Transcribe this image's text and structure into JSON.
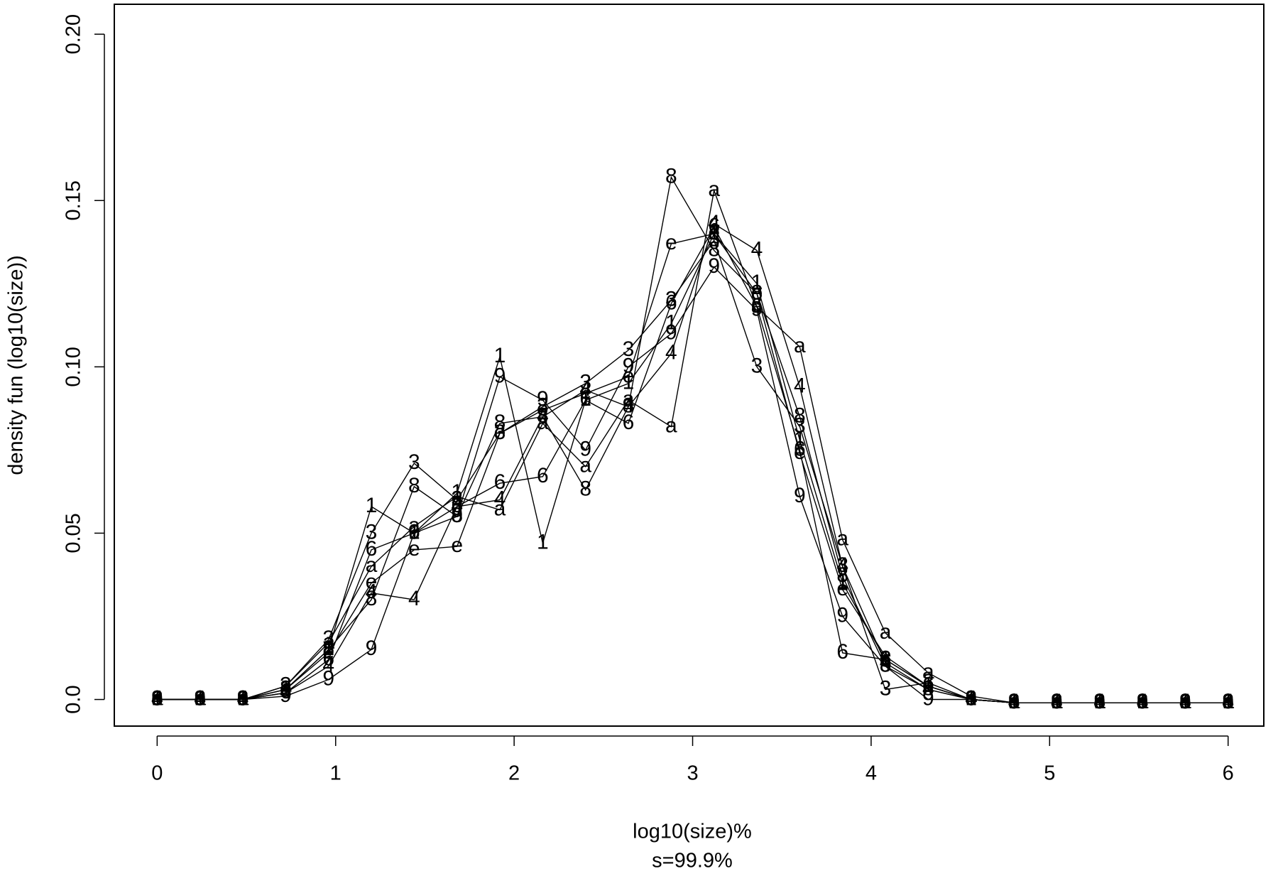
{
  "chart_data": {
    "type": "line",
    "xlabel": "log10(size)%",
    "subtitle": "s=99.9%",
    "ylabel": "density fun (log10(size))",
    "x": [
      0,
      0.24,
      0.48,
      0.72,
      0.96,
      1.2,
      1.44,
      1.68,
      1.92,
      2.16,
      2.4,
      2.64,
      2.88,
      3.12,
      3.36,
      3.6,
      3.84,
      4.08,
      4.32,
      4.56,
      4.8,
      5.04,
      5.28,
      5.52,
      5.76,
      6
    ],
    "series": [
      {
        "name": "1",
        "color": "#000000",
        "values": [
          0,
          0,
          0,
          0.003,
          0.015,
          0.058,
          0.05,
          0.062,
          0.103,
          0.047,
          0.09,
          0.095,
          0.113,
          0.14,
          0.125,
          0.078,
          0.035,
          0.012,
          0.004,
          0,
          -0.001,
          -0.001,
          -0.001,
          -0.001,
          -0.001,
          -0.001
        ]
      },
      {
        "name": "3",
        "color": "#000000",
        "values": [
          0,
          0,
          0,
          0.004,
          0.018,
          0.05,
          0.071,
          0.06,
          0.08,
          0.088,
          0.095,
          0.105,
          0.12,
          0.138,
          0.1,
          0.082,
          0.04,
          0.003,
          0.005,
          0,
          -0.001,
          -0.001,
          -0.001,
          -0.001,
          -0.001,
          -0.001
        ]
      },
      {
        "name": "6",
        "color": "#000000",
        "values": [
          0,
          0,
          0,
          0.002,
          0.012,
          0.045,
          0.05,
          0.058,
          0.065,
          0.067,
          0.09,
          0.083,
          0.119,
          0.142,
          0.118,
          0.075,
          0.014,
          0.012,
          0.004,
          0,
          -0.001,
          -0.001,
          -0.001,
          -0.001,
          -0.001,
          -0.001
        ]
      },
      {
        "name": "8",
        "color": "#000000",
        "values": [
          0,
          0,
          0,
          0.003,
          0.015,
          0.03,
          0.064,
          0.055,
          0.083,
          0.085,
          0.063,
          0.088,
          0.157,
          0.135,
          0.122,
          0.085,
          0.037,
          0.01,
          0.003,
          0,
          -0.001,
          -0.001,
          -0.001,
          -0.001,
          -0.001,
          -0.001
        ]
      },
      {
        "name": "9",
        "color": "#000000",
        "values": [
          0,
          0,
          0,
          0.001,
          0.006,
          0.015,
          0.05,
          0.055,
          0.097,
          0.09,
          0.075,
          0.1,
          0.11,
          0.13,
          0.117,
          0.061,
          0.025,
          0.01,
          0,
          0,
          -0.001,
          -0.001,
          -0.001,
          -0.001,
          -0.001,
          -0.001
        ]
      },
      {
        "name": "a",
        "color": "#000000",
        "values": [
          0,
          0,
          0,
          0.004,
          0.017,
          0.04,
          0.052,
          0.061,
          0.057,
          0.083,
          0.07,
          0.09,
          0.082,
          0.153,
          0.118,
          0.106,
          0.048,
          0.02,
          0.008,
          0.001,
          -0.001,
          -0.001,
          -0.001,
          -0.001,
          -0.001,
          -0.001
        ]
      },
      {
        "name": "e",
        "color": "#000000",
        "values": [
          0,
          0,
          0,
          0.003,
          0.014,
          0.035,
          0.045,
          0.046,
          0.08,
          0.087,
          0.092,
          0.097,
          0.137,
          0.14,
          0.122,
          0.074,
          0.033,
          0.013,
          0.004,
          0,
          -0.001,
          -0.001,
          -0.001,
          -0.001,
          -0.001,
          -0.001
        ]
      },
      {
        "name": "4",
        "color": "#000000",
        "values": [
          0,
          0,
          0,
          0.002,
          0.01,
          0.032,
          0.03,
          0.058,
          0.06,
          0.085,
          0.093,
          0.088,
          0.104,
          0.143,
          0.135,
          0.094,
          0.04,
          0.011,
          0.003,
          0,
          -0.001,
          -0.001,
          -0.001,
          -0.001,
          -0.001,
          -0.001
        ]
      }
    ],
    "xlim": [
      -0.24,
      6.2
    ],
    "ylim": [
      -0.008,
      0.209
    ],
    "xticks": [
      0,
      1,
      2,
      3,
      4,
      5,
      6
    ],
    "yticks": [
      {
        "value": 0,
        "label": "0.0"
      },
      0.05,
      {
        "value": 0.1,
        "label": "0.10"
      },
      {
        "value": 0.15,
        "label": "0.15"
      },
      {
        "value": 0.2,
        "label": "0.20"
      }
    ]
  }
}
